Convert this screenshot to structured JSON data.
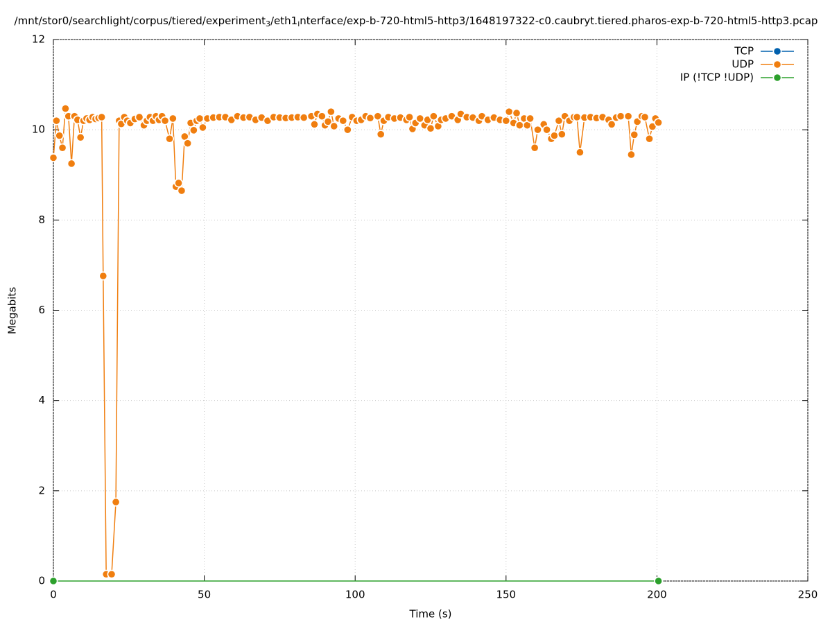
{
  "chart_data": {
    "type": "line",
    "title_parts": [
      "/mnt/stor0/searchlight/corpus/tiered/experiment",
      "3",
      "/eth1",
      "i",
      "nterface/exp-b-720-html5-http3/1648197322-c0.caubryt.tiered.pharos-exp-b-720-html5-http3.pcap"
    ],
    "x_label": "Time (s)",
    "y_label": "Megabits",
    "xlim": [
      0,
      250
    ],
    "xticks": [
      0,
      50,
      100,
      150,
      200,
      250
    ],
    "ylim": [
      0,
      12
    ],
    "yticks": [
      0,
      2,
      4,
      6,
      8,
      10,
      12
    ],
    "grid": true,
    "legend": "top-right",
    "series": [
      {
        "name": "TCP",
        "color": "#0060ad",
        "x": [],
        "values": []
      },
      {
        "name": "UDP",
        "color": "#f07e0f",
        "x": [
          0,
          1,
          2,
          3,
          4,
          5,
          6,
          7,
          8,
          9,
          10,
          11,
          12,
          13,
          14,
          15,
          16,
          16.5,
          17.5,
          19.3,
          20.7,
          21.8,
          22.5,
          23.5,
          24.5,
          25.5,
          27,
          28.5,
          30,
          31,
          32,
          33,
          34,
          35,
          36,
          37,
          38.5,
          39.6,
          40.6,
          41.5,
          42.5,
          43.5,
          44.5,
          45.5,
          46.5,
          47.5,
          48.5,
          49.5,
          51,
          53,
          55,
          57,
          59,
          61,
          63,
          65,
          67,
          69,
          71,
          73,
          75,
          77,
          79,
          81,
          83,
          85.5,
          86.5,
          87.5,
          89,
          90,
          91,
          92,
          93,
          94.5,
          96,
          97.5,
          99,
          100.5,
          102,
          103.5,
          105,
          107.5,
          108.5,
          109.5,
          111,
          113,
          115,
          117,
          118,
          119,
          120,
          121.5,
          123,
          124,
          125,
          126,
          127.5,
          128.5,
          130,
          132,
          134,
          135,
          137,
          139,
          141,
          142,
          144,
          146,
          148,
          150,
          151,
          152.5,
          153.5,
          154.5,
          156,
          157,
          158,
          159.5,
          160.5,
          162.5,
          163.5,
          165,
          166,
          167.5,
          168.5,
          169.5,
          171,
          172.5,
          173.5,
          174.5,
          176,
          178,
          180,
          182,
          184,
          185,
          186.5,
          188,
          190.5,
          191.5,
          192.5,
          193.5,
          195,
          196,
          197.5,
          198.5,
          199.5,
          200.5
        ],
        "values": [
          9.38,
          10.2,
          9.87,
          9.6,
          10.47,
          10.3,
          9.25,
          10.3,
          10.22,
          9.83,
          10.2,
          10.25,
          10.22,
          10.28,
          10.24,
          10.26,
          10.28,
          6.76,
          0.15,
          0.15,
          1.75,
          10.2,
          10.13,
          10.28,
          10.2,
          10.15,
          10.24,
          10.28,
          10.1,
          10.2,
          10.28,
          10.2,
          10.3,
          10.22,
          10.3,
          10.2,
          9.8,
          10.25,
          8.74,
          8.82,
          8.65,
          9.85,
          9.7,
          10.15,
          9.99,
          10.2,
          10.25,
          10.05,
          10.25,
          10.27,
          10.28,
          10.28,
          10.22,
          10.3,
          10.27,
          10.28,
          10.22,
          10.27,
          10.2,
          10.28,
          10.27,
          10.26,
          10.27,
          10.28,
          10.27,
          10.3,
          10.12,
          10.35,
          10.3,
          10.1,
          10.18,
          10.4,
          10.08,
          10.25,
          10.2,
          10.0,
          10.28,
          10.2,
          10.22,
          10.3,
          10.26,
          10.3,
          9.9,
          10.2,
          10.28,
          10.25,
          10.27,
          10.22,
          10.28,
          10.02,
          10.15,
          10.25,
          10.1,
          10.22,
          10.03,
          10.3,
          10.08,
          10.22,
          10.25,
          10.3,
          10.22,
          10.35,
          10.28,
          10.27,
          10.2,
          10.3,
          10.22,
          10.27,
          10.22,
          10.2,
          10.4,
          10.15,
          10.37,
          10.1,
          10.25,
          10.1,
          10.25,
          9.6,
          10.0,
          10.12,
          10.0,
          9.8,
          9.87,
          10.2,
          9.9,
          10.3,
          10.2,
          10.28,
          10.28,
          9.5,
          10.27,
          10.28,
          10.26,
          10.28,
          10.22,
          10.12,
          10.27,
          10.3,
          10.3,
          9.45,
          9.89,
          10.18,
          10.3,
          10.28,
          9.8,
          10.07,
          10.25,
          10.16
        ]
      },
      {
        "name": "IP (!TCP  !UDP)",
        "color": "#2ca02c",
        "x": [
          0,
          200.5
        ],
        "values": [
          0,
          0
        ]
      }
    ]
  }
}
